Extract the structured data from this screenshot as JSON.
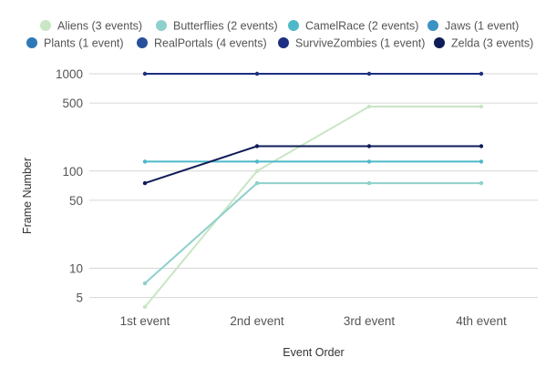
{
  "chart_data": {
    "type": "line",
    "title": "",
    "xlabel": "Event Order",
    "ylabel": "Frame Number",
    "yscale": "log",
    "ylim": [
      4,
      1000
    ],
    "yticks": [
      5,
      10,
      50,
      100,
      500,
      1000
    ],
    "ytick_labels": [
      "5",
      "10",
      "50",
      "100",
      "500",
      "1000"
    ],
    "grid": true,
    "legend_position": "top",
    "categories": [
      "1st event",
      "2nd event",
      "3rd event",
      "4th event"
    ],
    "series": [
      {
        "name": "Aliens (3 events)",
        "color": "#c8e6c4",
        "values": [
          4,
          100,
          460,
          460
        ]
      },
      {
        "name": "Butterflies (2 events)",
        "color": "#8ed0cc",
        "values": [
          7,
          75,
          75,
          75
        ]
      },
      {
        "name": "CamelRace (2 events)",
        "color": "#4db9c8",
        "values": [
          125,
          125,
          125,
          125
        ]
      },
      {
        "name": "Jaws (1 event)",
        "color": "#3a93c3",
        "values": [
          null,
          null,
          null,
          null
        ]
      },
      {
        "name": "Plants (1 event)",
        "color": "#2f78b8",
        "values": [
          null,
          null,
          null,
          null
        ]
      },
      {
        "name": "RealPortals (4 events)",
        "color": "#27509a",
        "values": [
          null,
          null,
          null,
          null
        ]
      },
      {
        "name": "SurviveZombies (1 event)",
        "color": "#1c2f80",
        "values": [
          1000,
          1000,
          1000,
          1000
        ]
      },
      {
        "name": "Zelda (3 events)",
        "color": "#0f1c57",
        "values": [
          75,
          180,
          180,
          180
        ]
      }
    ]
  }
}
